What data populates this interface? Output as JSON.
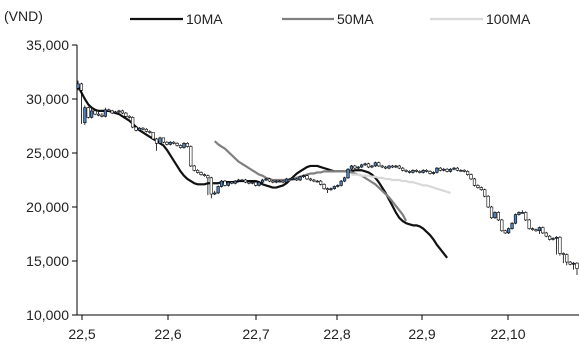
{
  "chart_data": {
    "type": "candlestick",
    "title": "",
    "ylabel": "(VND)",
    "xlabel": "",
    "ylim": [
      10000,
      35000
    ],
    "yticks": [
      10000,
      15000,
      20000,
      25000,
      30000,
      35000
    ],
    "ytick_labels": [
      "10,000",
      "15,000",
      "20,000",
      "25,000",
      "30,000",
      "35,000"
    ],
    "x_categories": [
      "22,5",
      "22,6",
      "22,7",
      "22,8",
      "22,9",
      "22,10"
    ],
    "grid": false,
    "legend_position": "top",
    "price_series": {
      "name": "",
      "close": [
        31400,
        30800,
        29200,
        28300,
        28900,
        28600,
        28500,
        28400,
        29000,
        28900,
        28700,
        28800,
        28900,
        28700,
        28400,
        28300,
        27400,
        27100,
        27300,
        27200,
        27000,
        26900,
        26300,
        25900,
        26400,
        26000,
        25800,
        26000,
        25900,
        25700,
        25500,
        25900,
        25600,
        23800,
        23400,
        23200,
        23000,
        22900,
        22700,
        21200,
        21300,
        21900,
        22400,
        22000,
        22300,
        22200,
        22400,
        22500,
        22500,
        22300,
        22200,
        22300,
        22000,
        22300,
        22500,
        22600,
        22400,
        22300,
        22400,
        22400,
        22300,
        22600,
        22600,
        22600,
        22500,
        22800,
        22900,
        22600,
        22500,
        22400,
        22400,
        22100,
        21700,
        21600,
        21700,
        21900,
        22000,
        22400,
        22700,
        23500,
        23800,
        23600,
        23700,
        23900,
        24000,
        23700,
        23800,
        24100,
        23800,
        23700,
        23600,
        23800,
        23700,
        23800,
        23600,
        23400,
        23300,
        23200,
        23400,
        23300,
        23200,
        23400,
        23300,
        23100,
        23200,
        23600,
        23400,
        23500,
        23300,
        23500,
        23600,
        23400,
        23400,
        23300,
        23000,
        22600,
        22000,
        21800,
        21600,
        21000,
        20000,
        19000,
        19500,
        18800,
        17800,
        17600,
        18000,
        18500,
        19300,
        19500,
        19500,
        18800,
        18000,
        17900,
        17800,
        18100,
        17600,
        17300,
        17000,
        17100,
        17200,
        15700,
        15600,
        14900,
        14700,
        14800,
        14300
      ],
      "open": [
        31000,
        31400,
        27800,
        29200,
        28300,
        28900,
        28600,
        28500,
        28400,
        29000,
        28900,
        28700,
        28800,
        28900,
        28700,
        28400,
        28300,
        27400,
        27100,
        27300,
        27200,
        27000,
        26900,
        26300,
        25900,
        26400,
        26000,
        25800,
        26000,
        25900,
        25700,
        25500,
        25900,
        25600,
        23800,
        23400,
        23200,
        23000,
        22900,
        22700,
        21200,
        21300,
        21900,
        22400,
        22000,
        22300,
        22200,
        22400,
        22500,
        22500,
        22300,
        22200,
        22300,
        22000,
        22300,
        22500,
        22600,
        22400,
        22300,
        22400,
        22400,
        22300,
        22600,
        22600,
        22600,
        22500,
        22800,
        22900,
        22600,
        22500,
        22400,
        22400,
        22100,
        21700,
        21600,
        21700,
        21900,
        22000,
        22400,
        22700,
        23500,
        23800,
        23600,
        23700,
        23900,
        24000,
        23700,
        23800,
        24100,
        23800,
        23700,
        23600,
        23800,
        23700,
        23800,
        23600,
        23400,
        23300,
        23200,
        23400,
        23300,
        23200,
        23400,
        23300,
        23100,
        23200,
        23600,
        23400,
        23500,
        23300,
        23500,
        23600,
        23400,
        23400,
        23300,
        23000,
        22600,
        22000,
        21800,
        21600,
        21000,
        20000,
        19000,
        19500,
        18800,
        17800,
        17600,
        18000,
        18500,
        19300,
        19500,
        19500,
        18800,
        18000,
        17900,
        17800,
        18100,
        17600,
        17300,
        17000,
        17100,
        17200,
        15700,
        15600,
        14900,
        14700,
        14800
      ],
      "high": [
        31700,
        31500,
        29400,
        29300,
        29100,
        29000,
        28800,
        28700,
        29200,
        29100,
        29000,
        28900,
        29000,
        29000,
        28800,
        28500,
        28400,
        27500,
        27400,
        27400,
        27300,
        27100,
        26900,
        26400,
        26500,
        26400,
        26100,
        26100,
        26100,
        26000,
        25800,
        26000,
        26000,
        25700,
        23900,
        23500,
        23300,
        23100,
        23000,
        22800,
        21500,
        22000,
        22500,
        22500,
        22400,
        22400,
        22500,
        22600,
        22600,
        22600,
        22400,
        22400,
        22400,
        22400,
        22600,
        22700,
        22700,
        22500,
        22500,
        22500,
        22500,
        22700,
        22700,
        22700,
        22700,
        22900,
        23000,
        23000,
        22700,
        22600,
        22500,
        22500,
        22200,
        21800,
        21800,
        22000,
        22100,
        22500,
        22800,
        23600,
        23900,
        23900,
        23800,
        24000,
        24100,
        24100,
        23900,
        24200,
        24200,
        23900,
        23800,
        23900,
        23900,
        23900,
        23900,
        23700,
        23500,
        23400,
        23500,
        23500,
        23400,
        23500,
        23500,
        23400,
        23300,
        23700,
        23700,
        23600,
        23600,
        23600,
        23700,
        23700,
        23500,
        23500,
        23400,
        23100,
        22700,
        22100,
        21900,
        21700,
        21100,
        20100,
        19600,
        19600,
        18900,
        17900,
        18100,
        18600,
        19400,
        19600,
        19700,
        19600,
        18900,
        18100,
        18000,
        18200,
        18200,
        17700,
        17400,
        17200,
        17300,
        17300,
        15800,
        15700,
        15000,
        14900,
        14900
      ],
      "low": [
        30800,
        27700,
        27600,
        28200,
        28200,
        28500,
        28400,
        28300,
        28300,
        28800,
        28600,
        28600,
        28700,
        28600,
        28300,
        28200,
        27300,
        27000,
        27000,
        27100,
        26900,
        26800,
        26200,
        25200,
        25800,
        25900,
        25700,
        25700,
        25800,
        25600,
        25400,
        25400,
        25500,
        23700,
        23300,
        23100,
        22900,
        22800,
        21100,
        20800,
        21100,
        21200,
        21800,
        21900,
        21900,
        22100,
        22100,
        22300,
        22400,
        22200,
        22100,
        22100,
        21900,
        21900,
        22200,
        22400,
        22300,
        22200,
        22200,
        22300,
        22200,
        22200,
        22500,
        22500,
        22400,
        22400,
        22700,
        22500,
        22400,
        22300,
        22300,
        22000,
        21600,
        21300,
        21500,
        21600,
        21800,
        21900,
        22300,
        22600,
        23400,
        23500,
        23500,
        23600,
        23800,
        23600,
        23600,
        23700,
        23700,
        23600,
        23500,
        23500,
        23600,
        23600,
        23500,
        23300,
        23200,
        23100,
        23100,
        23200,
        23100,
        23100,
        23200,
        23000,
        23000,
        23100,
        23300,
        23300,
        23200,
        23200,
        23400,
        23300,
        23300,
        23200,
        22900,
        22500,
        21900,
        21700,
        21500,
        20900,
        19900,
        18900,
        18900,
        18700,
        17700,
        17500,
        17500,
        17900,
        18400,
        19200,
        19400,
        18700,
        17900,
        17800,
        17700,
        17500,
        17500,
        17200,
        16900,
        16900,
        15600,
        15500,
        14800,
        14600,
        14600,
        14200,
        13700
      ]
    },
    "series": [
      {
        "name": "10MA",
        "color": "#111111",
        "start_index": 0,
        "values": [
          31200,
          30600,
          30000,
          29500,
          29200,
          29000,
          28900,
          28900,
          28900,
          28900,
          28800,
          28700,
          28600,
          28400,
          28200,
          28000,
          27700,
          27400,
          27100,
          26900,
          26700,
          26500,
          26300,
          26100,
          25900,
          25700,
          25300,
          24800,
          24300,
          23800,
          23300,
          22900,
          22600,
          22400,
          22200,
          22100,
          22100,
          22100,
          22200,
          22200,
          22200,
          22200,
          22300,
          22300,
          22300,
          22300,
          22300,
          22400,
          22400,
          22400,
          22400,
          22400,
          22400,
          22300,
          22100,
          22000,
          21900,
          21800,
          21800,
          21900,
          22000,
          22200,
          22500,
          22800,
          23100,
          23300,
          23500,
          23700,
          23800,
          23800,
          23800,
          23700,
          23600,
          23500,
          23400,
          23300,
          23300,
          23300,
          23300,
          23300,
          23300,
          23400,
          23400,
          23400,
          23300,
          23200,
          23000,
          22700,
          22300,
          21800,
          21300,
          20700,
          20100,
          19500,
          19000,
          18700,
          18500,
          18400,
          18300,
          18300,
          18200,
          18000,
          17700,
          17400,
          17000,
          16500,
          16100,
          15700,
          15300
        ]
      },
      {
        "name": "50MA",
        "color": "#808080",
        "start_index": 40,
        "values": [
          26100,
          25800,
          25600,
          25400,
          25100,
          24800,
          24500,
          24200,
          24000,
          23800,
          23600,
          23400,
          23200,
          23000,
          22900,
          22700,
          22600,
          22500,
          22500,
          22500,
          22500,
          22500,
          22500,
          22600,
          22700,
          22800,
          22900,
          23000,
          23100,
          23100,
          23200,
          23200,
          23300,
          23300,
          23300,
          23300,
          23300,
          23300,
          23300,
          23300,
          23200,
          23100,
          23000,
          22900,
          22700,
          22500,
          22300,
          22100,
          21800,
          21500,
          21200,
          20900,
          20500,
          20100,
          19700,
          19300,
          18700
        ]
      },
      {
        "name": "100MA",
        "color": "#d9d9d9",
        "start_index": 80,
        "values": [
          23000,
          23000,
          23000,
          22900,
          22900,
          22900,
          22800,
          22800,
          22700,
          22700,
          22600,
          22600,
          22500,
          22500,
          22500,
          22400,
          22400,
          22300,
          22300,
          22200,
          22100,
          22000,
          22000,
          21900,
          21800,
          21700,
          21600,
          21500,
          21400,
          21300
        ]
      }
    ]
  }
}
